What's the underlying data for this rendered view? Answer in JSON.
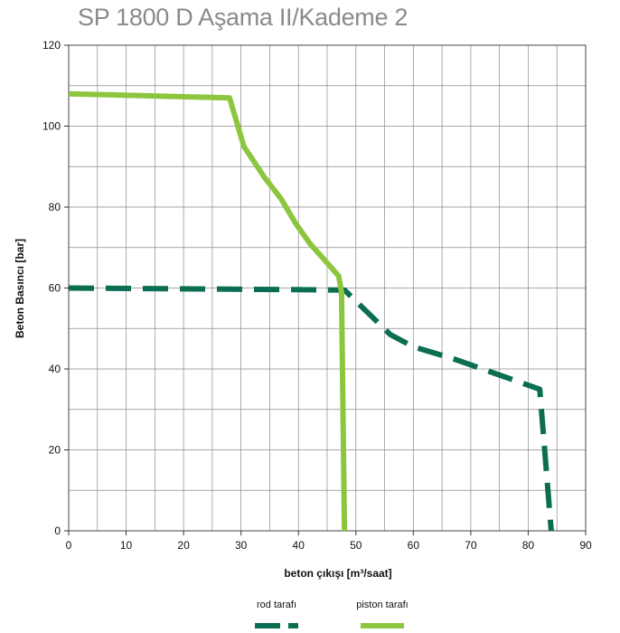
{
  "title": "SP 1800 D Aşama II/Kademe 2",
  "chart_data": {
    "type": "line",
    "title": "SP 1800 D Aşama II/Kademe 2",
    "xlabel": "beton çıkışı  [m³/saat]",
    "ylabel": "Beton Basıncı  [bar]",
    "xlim": [
      0,
      90
    ],
    "ylim": [
      0,
      120
    ],
    "xticks": [
      0,
      10,
      20,
      30,
      40,
      50,
      60,
      70,
      80,
      90
    ],
    "yticks": [
      0,
      20,
      40,
      60,
      80,
      100,
      120
    ],
    "xtick_labels": [
      "0",
      "10",
      "20",
      "30",
      "40",
      "50",
      "60",
      "70",
      "80",
      "90"
    ],
    "ytick_labels": [
      "0",
      "20",
      "40",
      "60",
      "80",
      "100",
      "120"
    ],
    "grid": true,
    "legend_position": "bottom-center",
    "series": [
      {
        "name": "rod tarafı",
        "color": "#0b6e52",
        "style": "dashed",
        "points": [
          [
            0,
            60
          ],
          [
            48,
            59.5
          ],
          [
            56,
            48.5
          ],
          [
            60,
            45.5
          ],
          [
            67,
            42.5
          ],
          [
            74,
            39
          ],
          [
            82,
            35
          ],
          [
            84,
            0
          ]
        ]
      },
      {
        "name": "piston tarafı",
        "color": "#8cc63e",
        "style": "solid",
        "points": [
          [
            0,
            108
          ],
          [
            28,
            107
          ],
          [
            30.5,
            95
          ],
          [
            34,
            87.5
          ],
          [
            37,
            82
          ],
          [
            39.5,
            76
          ],
          [
            42,
            71
          ],
          [
            47,
            63
          ],
          [
            47.5,
            59
          ],
          [
            48,
            0
          ]
        ]
      }
    ]
  }
}
